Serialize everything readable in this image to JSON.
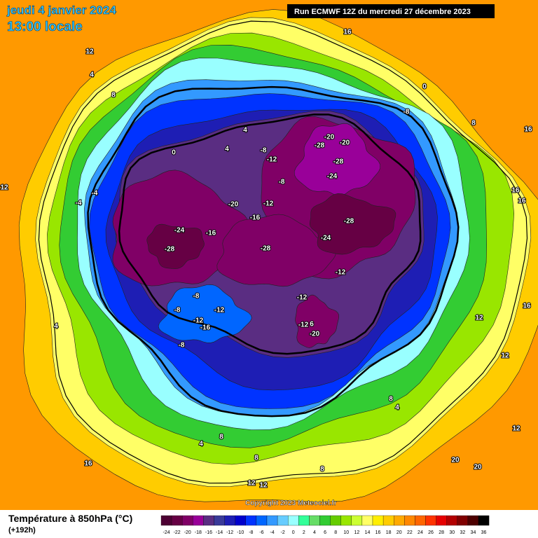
{
  "header": {
    "date": "jeudi 4 janvier 2024",
    "time": "13:00 locale",
    "run": "Run ECMWF 12Z du mercredi 27 décembre 2023"
  },
  "copyright": "Copyright 2023 Meteociel.fr",
  "footer": {
    "title": "Température à 850hPa (°C)",
    "lead": "(+192h)"
  },
  "scale": {
    "ticks": [
      -24,
      -22,
      -20,
      -18,
      -16,
      -14,
      -12,
      -10,
      -8,
      -6,
      -4,
      -2,
      0,
      2,
      4,
      6,
      8,
      10,
      12,
      14,
      16,
      18,
      20,
      22,
      24,
      26,
      28,
      30,
      32,
      34,
      36
    ],
    "colors": [
      "#4d0033",
      "#660044",
      "#800066",
      "#990099",
      "#5a2d82",
      "#3a3a99",
      "#1e1eb4",
      "#0000cc",
      "#0033ff",
      "#0066ff",
      "#3399ff",
      "#66ccff",
      "#99ffff",
      "#33ff99",
      "#66dd66",
      "#33cc33",
      "#66cc00",
      "#99e600",
      "#ccff33",
      "#ffff66",
      "#ffee00",
      "#ffcc00",
      "#ffaa00",
      "#ff8800",
      "#ff6600",
      "#ff3300",
      "#e60000",
      "#b30000",
      "#800000",
      "#4d0000",
      "#000000"
    ]
  },
  "map": {
    "labels": [
      "12",
      "4",
      "8",
      "0",
      "4",
      "4",
      "-8",
      "-12",
      "-8",
      "-12",
      "-16",
      "-20",
      "-24",
      "-28",
      "-16",
      "-28",
      "-24",
      "-28",
      "-24",
      "-28",
      "-28",
      "-20",
      "-20",
      "-8",
      "0",
      "8",
      "16",
      "16",
      "-12",
      "-12",
      "-8",
      "-8",
      "-12",
      "-12",
      "-16",
      "-8",
      "-12",
      "-20",
      "6",
      "4",
      "8",
      "4",
      "8",
      "4",
      "16",
      "8",
      "8",
      "12",
      "12",
      "20",
      "20",
      "12",
      "12",
      "16",
      "12",
      "16",
      "16",
      "12",
      "-4",
      "-4"
    ]
  }
}
